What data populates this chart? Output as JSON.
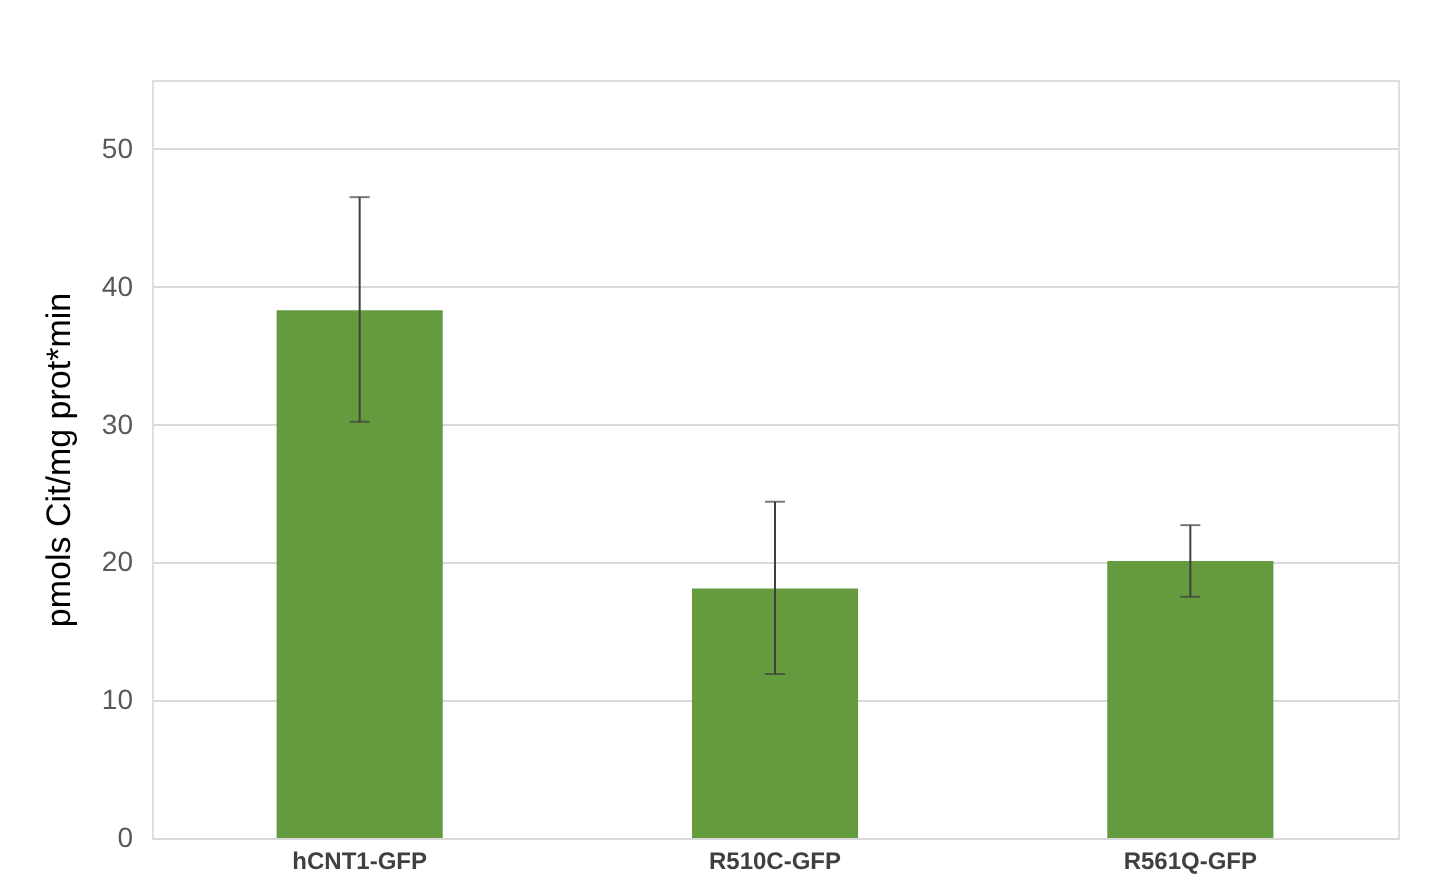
{
  "chart_data": {
    "type": "bar",
    "ylabel": "pmols Cit/mg prot*min",
    "categories": [
      "hCNT1-GFP",
      "R510C-GFP",
      "R561Q-GFP"
    ],
    "values": [
      38.3,
      18.1,
      20.1
    ],
    "errors": [
      [
        30.2,
        46.5
      ],
      [
        11.9,
        24.4
      ],
      [
        17.5,
        22.7
      ]
    ],
    "color": "#659b3f",
    "ylim": [
      0,
      55
    ],
    "yticks": [
      0,
      10,
      20,
      30,
      40,
      50
    ],
    "grid": "y"
  }
}
